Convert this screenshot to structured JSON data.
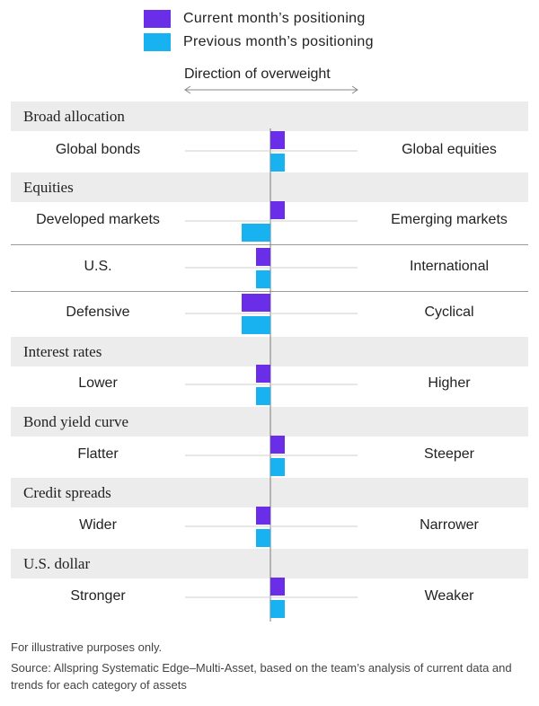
{
  "chart_data": {
    "type": "bar",
    "orientation": "horizontal",
    "axis_label": "Direction of overweight",
    "series": [
      {
        "name": "Current month’s positioning",
        "color": "#6a2ee8"
      },
      {
        "name": "Previous month’s positioning",
        "color": "#19b2f0"
      }
    ],
    "sections": [
      {
        "title": "Broad allocation",
        "rows": [
          {
            "left": "Global bonds",
            "right": "Global equities",
            "current": 1,
            "previous": 1
          }
        ]
      },
      {
        "title": "Equities",
        "rows": [
          {
            "left": "Developed markets",
            "right": "Emerging markets",
            "current": 1,
            "previous": -2
          },
          {
            "left": "U.S.",
            "right": "International",
            "current": -1,
            "previous": -1
          },
          {
            "left": "Defensive",
            "right": "Cyclical",
            "current": -2,
            "previous": -2
          }
        ]
      },
      {
        "title": "Interest rates",
        "rows": [
          {
            "left": "Lower",
            "right": "Higher",
            "current": -1,
            "previous": -1
          }
        ]
      },
      {
        "title": "Bond yield curve",
        "rows": [
          {
            "left": "Flatter",
            "right": "Steeper",
            "current": 1,
            "previous": 1
          }
        ]
      },
      {
        "title": "Credit spreads",
        "rows": [
          {
            "left": "Wider",
            "right": "Narrower",
            "current": -1,
            "previous": -1
          }
        ]
      },
      {
        "title": "U.S. dollar",
        "rows": [
          {
            "left": "Stronger",
            "right": "Weaker",
            "current": 1,
            "previous": 1
          }
        ]
      }
    ]
  },
  "footnotes": {
    "note": "For illustrative purposes only.",
    "source": "Source: Allspring Systematic Edge–Multi-Asset, based on the team’s analysis of current data and trends for each category of assets"
  }
}
